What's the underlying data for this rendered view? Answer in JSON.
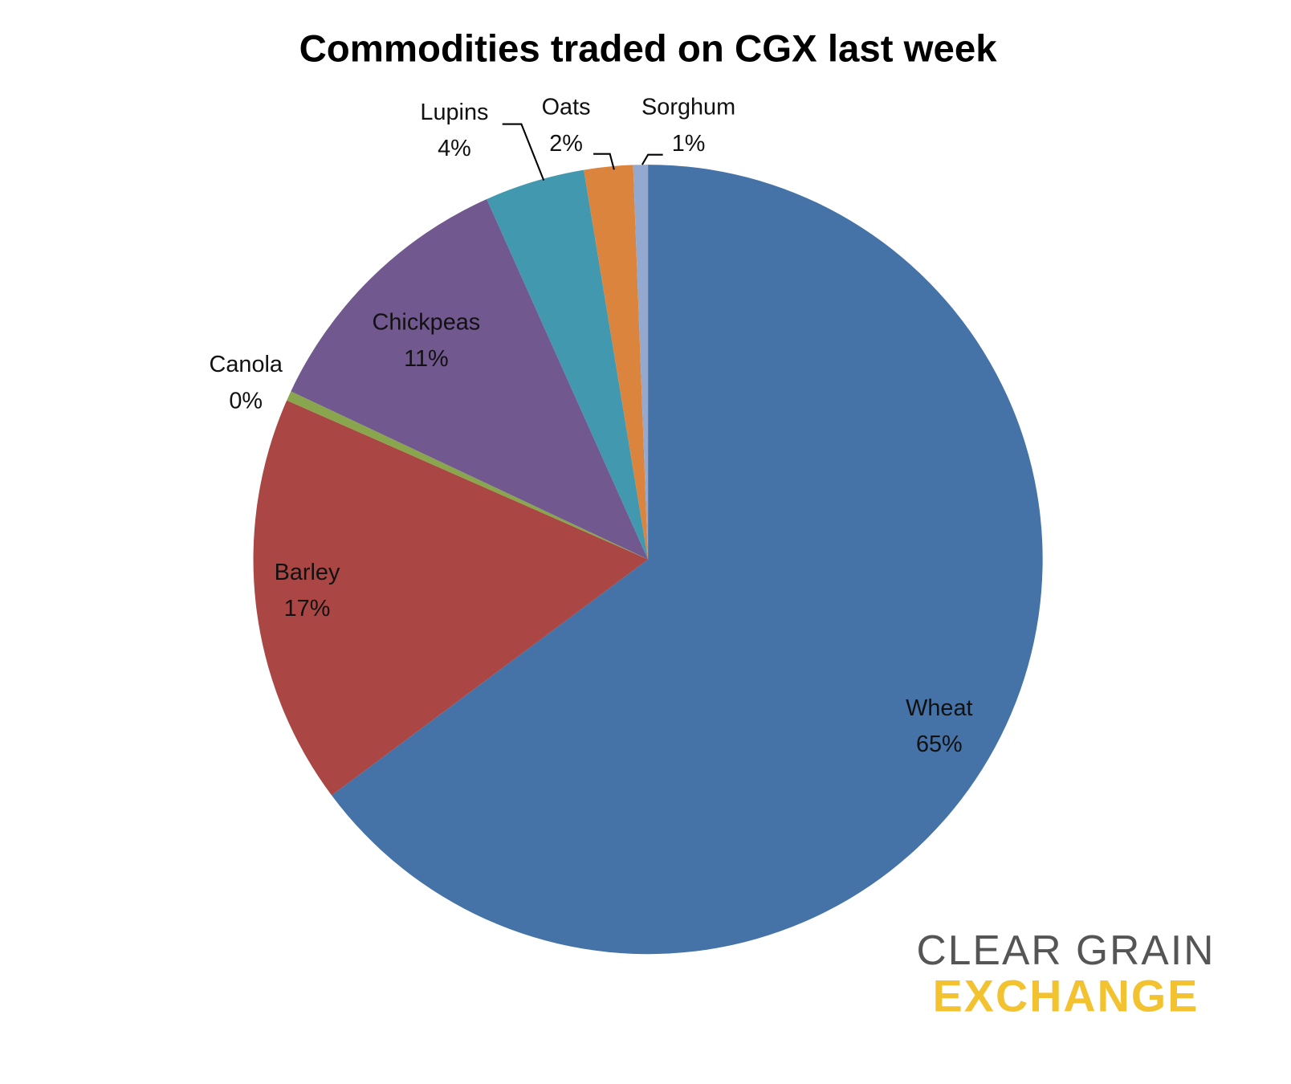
{
  "chart_data": {
    "type": "pie",
    "title": "Commodities traded on CGX last week",
    "categories": [
      "Wheat",
      "Barley",
      "Canola",
      "Chickpeas",
      "Lupins",
      "Oats",
      "Sorghum"
    ],
    "values": [
      64.8,
      16.8,
      0.4,
      11.3,
      4.1,
      2.0,
      0.6
    ],
    "value_labels": [
      "65%",
      "17%",
      "0%",
      "11%",
      "4%",
      "2%",
      "1%"
    ],
    "colors": [
      "#4572a7",
      "#aa4643",
      "#89a54e",
      "#71588f",
      "#4198af",
      "#db843d",
      "#93a9cf"
    ]
  },
  "logo": {
    "line1": "CLEAR GRAIN",
    "line2": "EXCHANGE"
  }
}
